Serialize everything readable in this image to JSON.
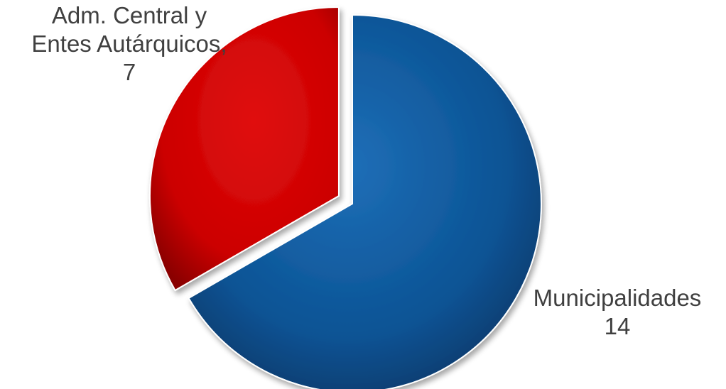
{
  "chart_data": {
    "type": "pie",
    "slices": [
      {
        "category_lines": [
          "Municipalidades"
        ],
        "value_text": "14",
        "value": 14,
        "color": "#0b5394",
        "exploded": false
      },
      {
        "category_lines": [
          "Adm. Central y",
          "Entes Autárquicos,"
        ],
        "value_text": "7",
        "value": 7,
        "color": "#cc0000",
        "exploded": true
      }
    ],
    "start_angle_deg": 0,
    "direction": "clockwise",
    "style": "3d-bevel",
    "label_color": "#404040"
  }
}
